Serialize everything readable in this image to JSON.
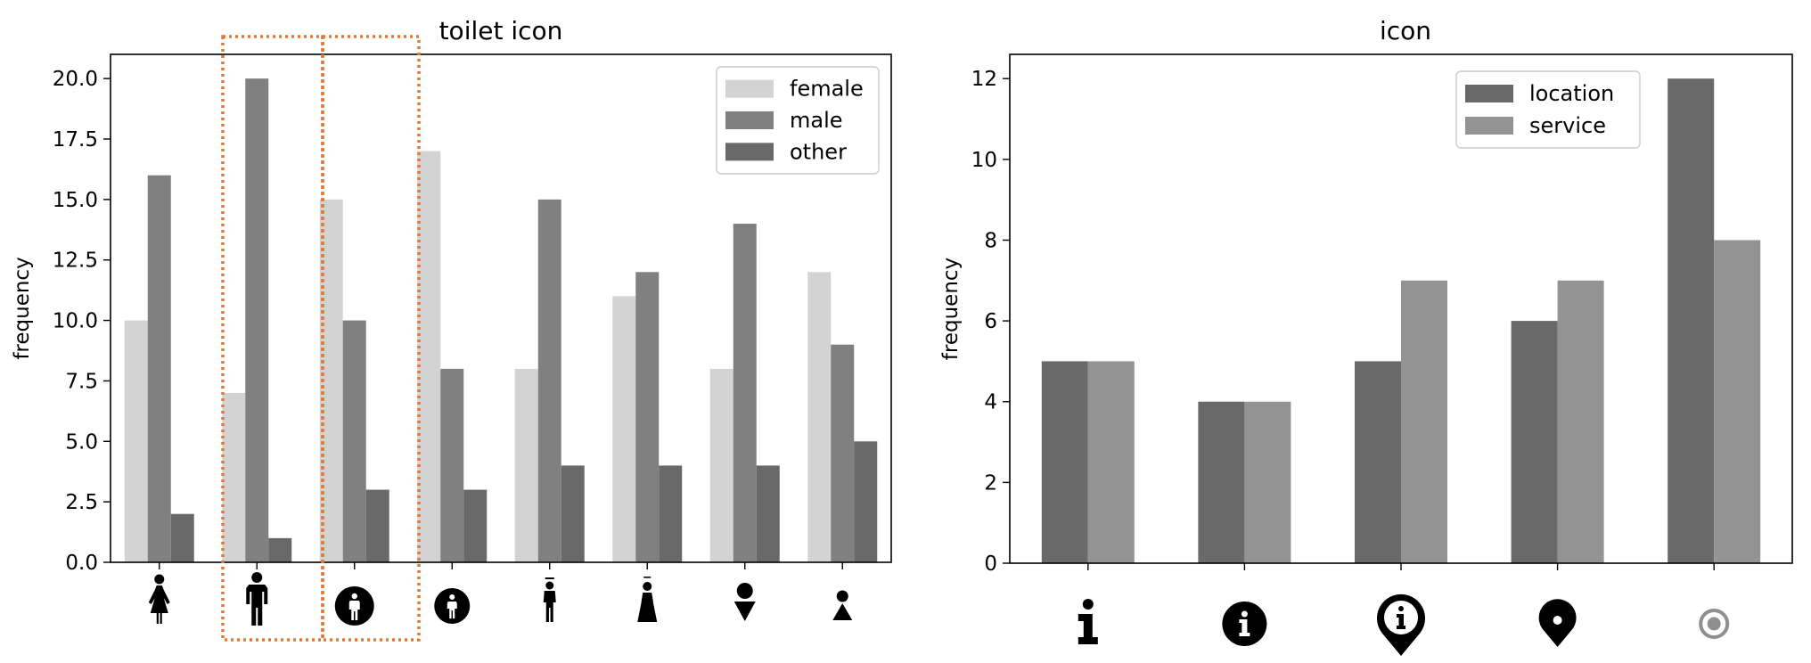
{
  "chart_data": [
    {
      "type": "bar",
      "title": "toilet icon",
      "xlabel": "",
      "ylabel": "frequency",
      "ylim": [
        0,
        21
      ],
      "yticks": [
        0.0,
        2.5,
        5.0,
        7.5,
        10.0,
        12.5,
        15.0,
        17.5,
        20.0
      ],
      "ytick_labels": [
        "0.0",
        "2.5",
        "5.0",
        "7.5",
        "10.0",
        "12.5",
        "15.0",
        "17.5",
        "20.0"
      ],
      "categories": [
        "woman-icon",
        "man-icon",
        "man-in-circle-icon",
        "man-in-small-circle-icon",
        "person-with-bar-icon",
        "person-in-dress-with-bar-icon",
        "circle-over-triangle-down-icon",
        "circle-over-triangle-up-icon"
      ],
      "series": [
        {
          "name": "female",
          "color": "#d3d3d3",
          "values": [
            10,
            7,
            15,
            17,
            8,
            11,
            8,
            12
          ]
        },
        {
          "name": "male",
          "color": "#808080",
          "values": [
            16,
            20,
            10,
            8,
            15,
            12,
            14,
            9
          ]
        },
        {
          "name": "other",
          "color": "#696969",
          "values": [
            2,
            1,
            3,
            3,
            4,
            4,
            4,
            5
          ]
        }
      ],
      "highlight_categories": [
        1,
        2
      ],
      "highlight_color": "#dd7a3a",
      "legend": "top-right",
      "grid": false
    },
    {
      "type": "bar",
      "title": "icon",
      "xlabel": "",
      "ylabel": "frequency",
      "ylim": [
        0,
        12.6
      ],
      "yticks": [
        0,
        2,
        4,
        6,
        8,
        10,
        12
      ],
      "ytick_labels": [
        "0",
        "2",
        "4",
        "6",
        "8",
        "10",
        "12"
      ],
      "categories": [
        "info-i-icon",
        "info-circle-icon",
        "info-location-pin-icon",
        "location-pin-icon",
        "target-circle-icon"
      ],
      "series": [
        {
          "name": "location",
          "color": "#696969",
          "values": [
            5,
            4,
            5,
            6,
            12
          ]
        },
        {
          "name": "service",
          "color": "#939393",
          "values": [
            5,
            4,
            7,
            7,
            8
          ]
        }
      ],
      "legend": "top-right",
      "grid": false
    }
  ]
}
